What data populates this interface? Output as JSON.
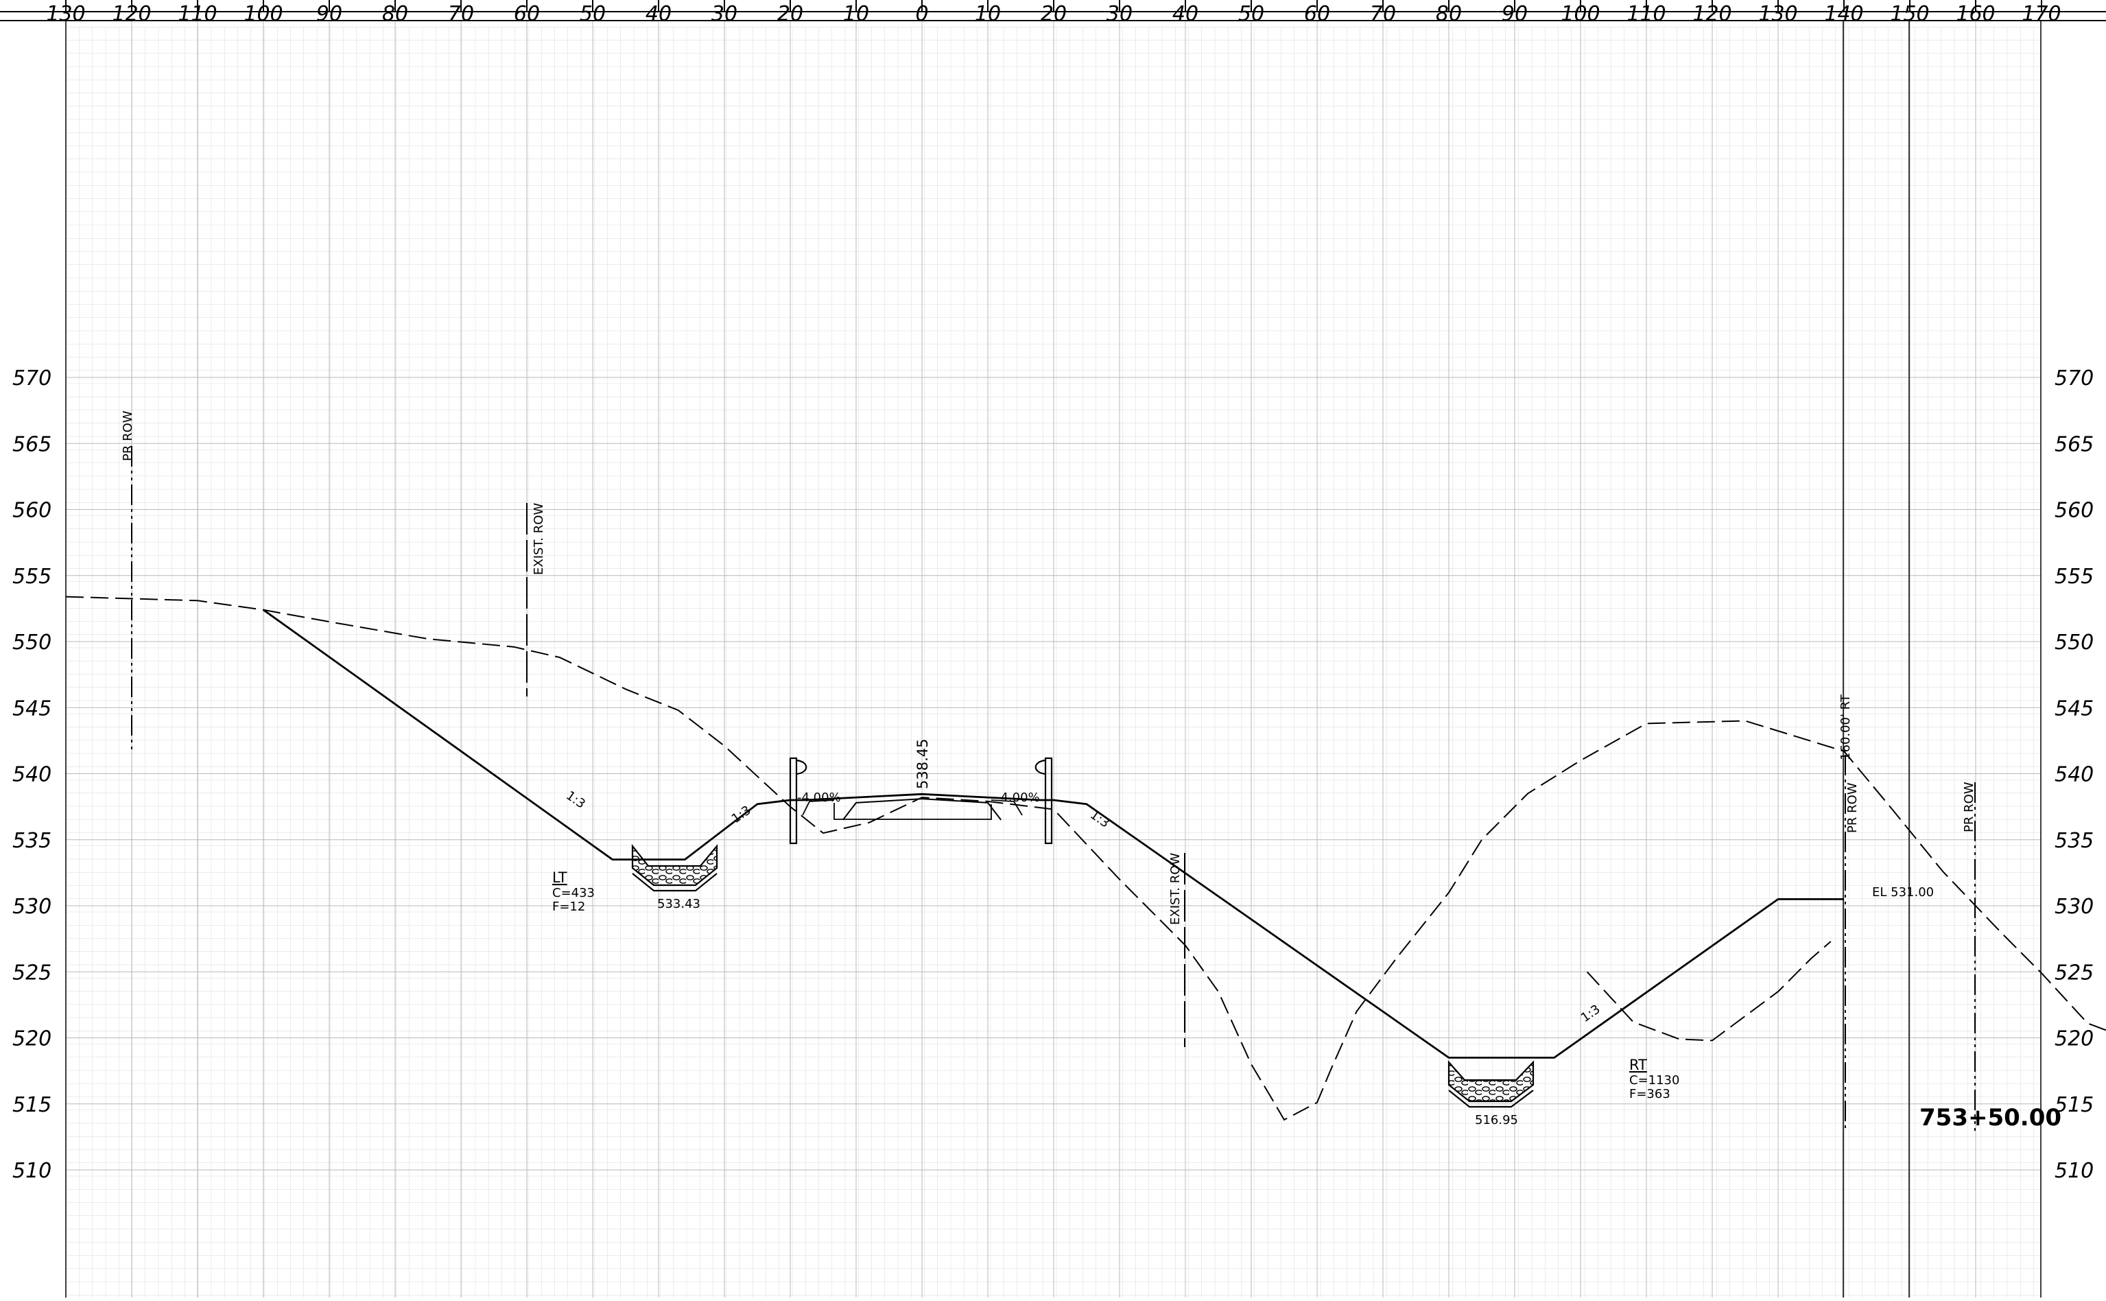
{
  "x_ticks": [
    "130",
    "120",
    "110",
    "100",
    "90",
    "80",
    "70",
    "60",
    "50",
    "40",
    "30",
    "20",
    "10",
    "0",
    "10",
    "20",
    "30",
    "40",
    "50",
    "60",
    "70",
    "80",
    "90",
    "100",
    "110",
    "120",
    "130",
    "140",
    "150",
    "160",
    "170"
  ],
  "y_ticks": [
    "570",
    "565",
    "560",
    "555",
    "550",
    "545",
    "540",
    "535",
    "530",
    "525",
    "520",
    "515",
    "510"
  ],
  "labels": {
    "pr_row_left": "PR ROW",
    "exist_row_left": "EXIST. ROW",
    "exist_row_right": "EXIST. ROW",
    "pr_row_right_a": "PR ROW",
    "pr_row_right_b": "PR ROW",
    "offset_160": "160.00' RT",
    "centerline_elev": "538.45",
    "slope_left": "-4.00%",
    "slope_right": "-4.00%",
    "ratio_1": "1:3",
    "ratio_2": "1:3",
    "ratio_3": "1:3",
    "ratio_4": "1:3",
    "lt_title": "LT",
    "lt_cut": "C=433",
    "lt_fill": "F=12",
    "rt_title": "RT",
    "rt_cut": "C=1130",
    "rt_fill": "F=363",
    "ditch_left_elev": "533.43",
    "ditch_right_elev": "516.95",
    "el_right": "EL 531.00",
    "station": "753+50.00"
  },
  "profiles": {
    "existing_ground": {
      "style": "dashed",
      "points": [
        [
          -130,
          553.4
        ],
        [
          -110,
          553.1
        ],
        [
          -100,
          552.4
        ],
        [
          -90,
          551.5
        ],
        [
          -75,
          550.2
        ],
        [
          -62,
          549.6
        ],
        [
          -55,
          548.8
        ],
        [
          -45,
          546.4
        ],
        [
          -37,
          544.8
        ],
        [
          -30,
          542.1
        ],
        [
          -20,
          537.5
        ],
        [
          -15,
          535.5
        ],
        [
          -8,
          536.3
        ],
        [
          0,
          538.2
        ],
        [
          10,
          537.9
        ],
        [
          20,
          537.3
        ],
        [
          30,
          532
        ],
        [
          40,
          527
        ],
        [
          45,
          523.5
        ],
        [
          50,
          518
        ],
        [
          53,
          515.5
        ],
        [
          55,
          513.8
        ],
        [
          60,
          515.1
        ],
        [
          62,
          517.5
        ],
        [
          66,
          522
        ],
        [
          72,
          526
        ],
        [
          80,
          531
        ],
        [
          85,
          535
        ],
        [
          92,
          538.5
        ],
        [
          100,
          541
        ],
        [
          110,
          543.8
        ],
        [
          125,
          544
        ],
        [
          140,
          541.7
        ],
        [
          147,
          537.5
        ],
        [
          155,
          532.6
        ],
        [
          164,
          527.9
        ],
        [
          170,
          524.9
        ],
        [
          177,
          521.1
        ],
        [
          184,
          519.8
        ],
        [
          190,
          519.8
        ],
        [
          195,
          520.5
        ]
      ]
    },
    "existing_ground_right": {
      "style": "dashed",
      "points": [
        [
          101,
          525
        ],
        [
          108,
          521.2
        ],
        [
          115,
          519.9
        ],
        [
          120,
          519.8
        ],
        [
          130,
          523.5
        ],
        [
          135,
          526
        ],
        [
          138,
          527.3
        ]
      ]
    },
    "existing_pavement": {
      "style": "solid",
      "points": [
        [
          -12,
          536.5
        ],
        [
          -10,
          537.8
        ],
        [
          0,
          538.1
        ],
        [
          10,
          537.8
        ],
        [
          12,
          536.5
        ]
      ]
    },
    "proposed_section": {
      "style": "solid",
      "points": [
        [
          -100,
          552.4
        ],
        [
          -47,
          533.5
        ],
        [
          -36,
          533.5
        ],
        [
          -25,
          537.7
        ],
        [
          -20,
          538
        ],
        [
          -18,
          538
        ],
        [
          0,
          538.45
        ],
        [
          18,
          538
        ],
        [
          20,
          538
        ],
        [
          25,
          537.7
        ],
        [
          80,
          518.5
        ],
        [
          96,
          518.5
        ],
        [
          130,
          530.5
        ],
        [
          140,
          530.5
        ]
      ]
    }
  }
}
